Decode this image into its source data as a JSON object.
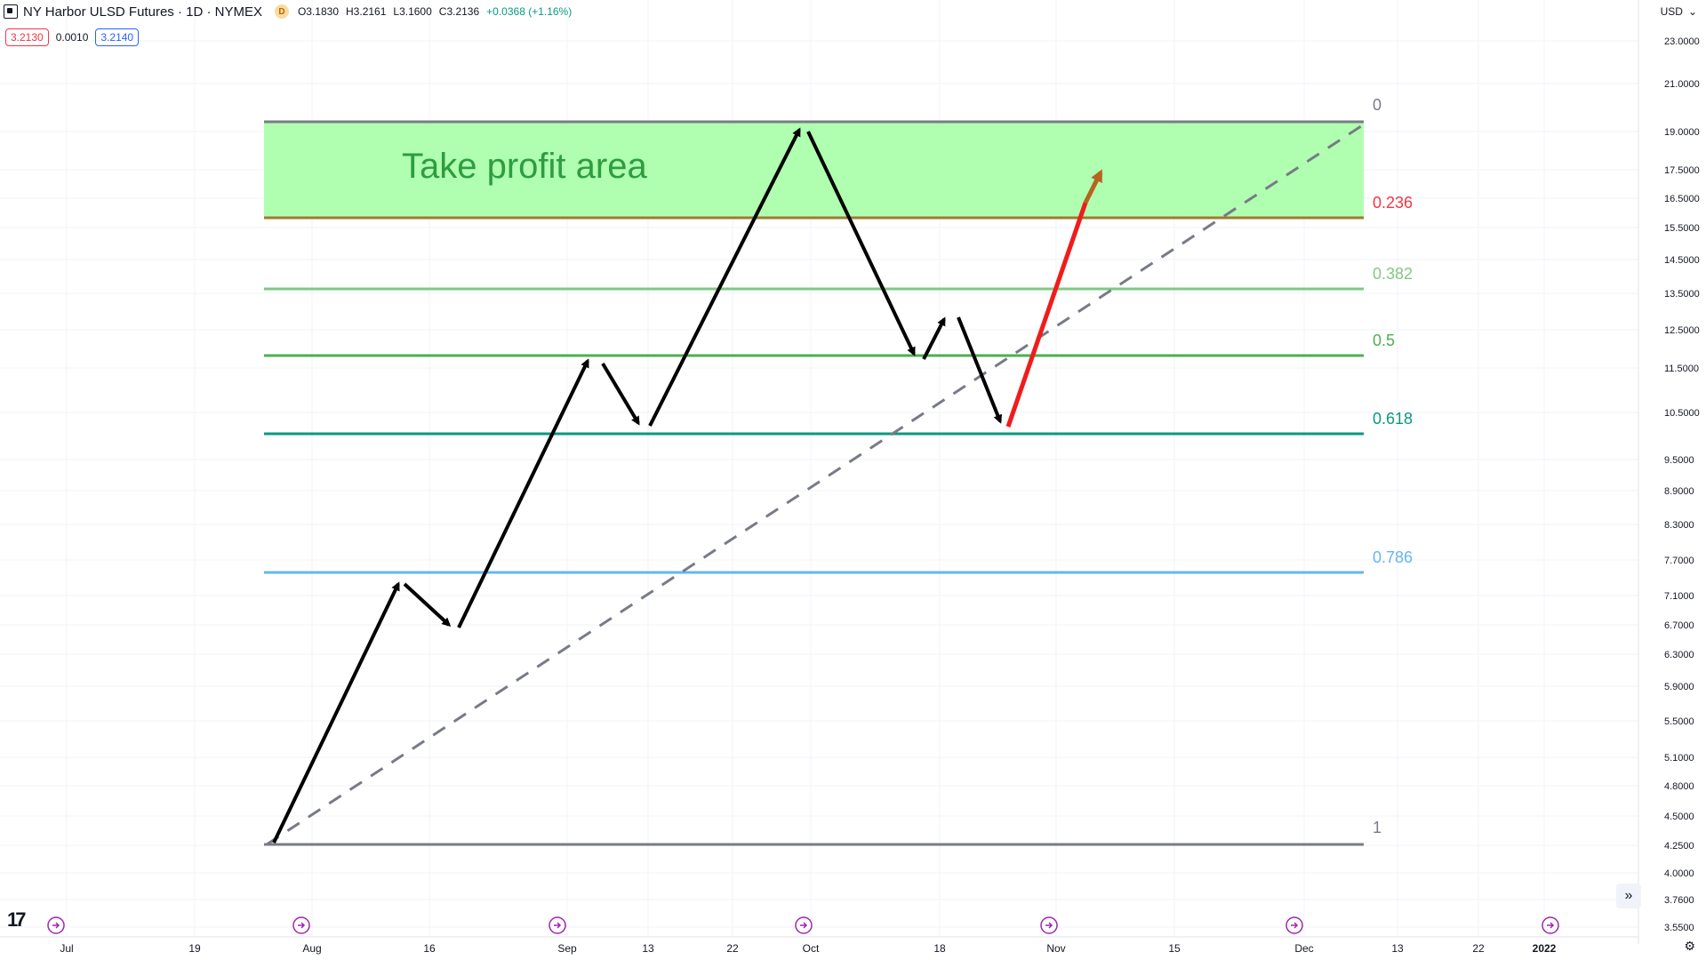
{
  "header": {
    "symbol_title": "NY Harbor ULSD Futures · 1D · NYMEX",
    "badge": "D",
    "open": "O3.1830",
    "high": "H3.2161",
    "low": "L3.1600",
    "close": "C3.2136",
    "change": "+0.0368 (+1.16%)"
  },
  "price_boxes": {
    "bid": "3.2130",
    "spread": "0.0010",
    "ask": "3.2140"
  },
  "currency": {
    "label": "USD",
    "chevron": "⌄"
  },
  "toolbar": {
    "goto_realtime_icon": "»",
    "settings_icon": "⚙"
  },
  "brand": {
    "logo_text": "17"
  },
  "annotation": {
    "label": "Take profit area",
    "fill_color": "#b0ffb0",
    "text_color": "#2e9c3f"
  },
  "fib_levels": [
    {
      "label": "0",
      "color": "#787b86"
    },
    {
      "label": "0.236",
      "color": "#f23645"
    },
    {
      "label": "0.382",
      "color": "#81c784"
    },
    {
      "label": "0.5",
      "color": "#4caf50"
    },
    {
      "label": "0.618",
      "color": "#089981"
    },
    {
      "label": "0.786",
      "color": "#64b5f6"
    },
    {
      "label": "1",
      "color": "#787b86"
    }
  ],
  "y_axis_ticks": [
    "23.0000",
    "21.0000",
    "19.0000",
    "17.5000",
    "16.5000",
    "15.5000",
    "14.5000",
    "13.5000",
    "12.5000",
    "11.5000",
    "10.5000",
    "9.5000",
    "8.9000",
    "8.3000",
    "7.7000",
    "7.1000",
    "6.7000",
    "6.3000",
    "5.9000",
    "5.5000",
    "5.1000",
    "4.8000",
    "4.5000",
    "4.2500",
    "4.0000",
    "3.7600",
    "3.5500"
  ],
  "x_axis_ticks": [
    "Jul",
    "19",
    "Aug",
    "16",
    "Sep",
    "13",
    "22",
    "Oct",
    "18",
    "Nov",
    "15",
    "Dec",
    "13",
    "22",
    "2022"
  ],
  "event_markers_icon": "dividend-event-icon"
}
